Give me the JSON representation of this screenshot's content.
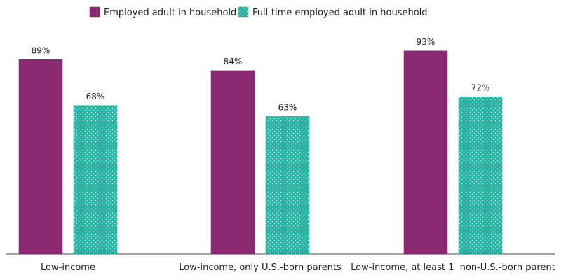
{
  "chart_data": {
    "type": "bar",
    "categories": [
      "Low-income",
      "Low-income, only U.S.-born parents",
      "Low-income, at least 1  non-U.S.-born parent"
    ],
    "series": [
      {
        "name": "Employed adult in household",
        "values": [
          89,
          84,
          93
        ],
        "labels": [
          "89%",
          "84%",
          "93%"
        ],
        "color": "#8b2a73",
        "pattern": "solid"
      },
      {
        "name": "Full-time employed adult in household",
        "values": [
          68,
          63,
          72
        ],
        "labels": [
          "68%",
          "63%",
          "72%"
        ],
        "color": "#27b5a6",
        "pattern": "dotted"
      }
    ],
    "ylim": [
      0,
      100
    ],
    "grid": false,
    "legend_position": "top-center",
    "title": "",
    "xlabel": "",
    "ylabel": ""
  }
}
